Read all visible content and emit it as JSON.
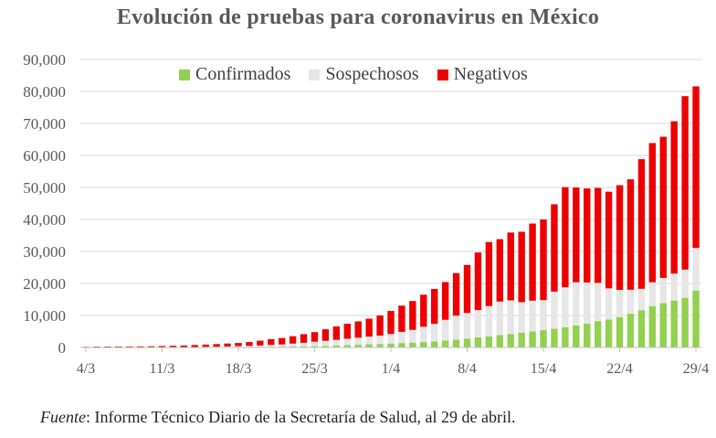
{
  "title": "Evolución de pruebas para coronavirus en México",
  "legend": {
    "items": [
      {
        "label": "Confirmados",
        "color": "#92d050"
      },
      {
        "label": "Sospechosos",
        "color": "#e6e6e6"
      },
      {
        "label": "Negativos",
        "color": "#ee0000"
      }
    ]
  },
  "source": {
    "prefix": "Fuente",
    "sep": ":",
    "text": " Informe Técnico Diario de la Secretaría de Salud, al 29 de abril."
  },
  "chart_data": {
    "type": "bar",
    "stacked": true,
    "ylim": [
      0,
      90000
    ],
    "yticks": [
      "0",
      "10,000",
      "20,000",
      "30,000",
      "40,000",
      "50,000",
      "60,000",
      "70,000",
      "80,000",
      "90,000"
    ],
    "xtick_labels": [
      {
        "index": 0,
        "label": "4/3"
      },
      {
        "index": 7,
        "label": "11/3"
      },
      {
        "index": 14,
        "label": "18/3"
      },
      {
        "index": 21,
        "label": "25/3"
      },
      {
        "index": 28,
        "label": "1/4"
      },
      {
        "index": 35,
        "label": "8/4"
      },
      {
        "index": 42,
        "label": "15/4"
      },
      {
        "index": 49,
        "label": "22/4"
      },
      {
        "index": 56,
        "label": "29/4"
      }
    ],
    "categories": [
      "4/3",
      "5/3",
      "6/3",
      "7/3",
      "8/3",
      "9/3",
      "10/3",
      "11/3",
      "12/3",
      "13/3",
      "14/3",
      "15/3",
      "16/3",
      "17/3",
      "18/3",
      "19/3",
      "20/3",
      "21/3",
      "22/3",
      "23/3",
      "24/3",
      "25/3",
      "26/3",
      "27/3",
      "28/3",
      "29/3",
      "30/3",
      "31/3",
      "1/4",
      "2/4",
      "3/4",
      "4/4",
      "5/4",
      "6/4",
      "7/4",
      "8/4",
      "9/4",
      "10/4",
      "11/4",
      "12/4",
      "13/4",
      "14/4",
      "15/4",
      "16/4",
      "17/4",
      "18/4",
      "19/4",
      "20/4",
      "21/4",
      "22/4",
      "23/4",
      "24/4",
      "25/4",
      "26/4",
      "27/4",
      "28/4",
      "29/4"
    ],
    "series": [
      {
        "name": "Confirmados",
        "color": "#92d050",
        "values": [
          5,
          5,
          6,
          7,
          7,
          7,
          7,
          8,
          12,
          16,
          26,
          41,
          53,
          82,
          93,
          118,
          164,
          203,
          251,
          316,
          367,
          405,
          475,
          585,
          717,
          848,
          993,
          1094,
          1215,
          1378,
          1510,
          1688,
          1890,
          2143,
          2439,
          2785,
          3181,
          3441,
          3844,
          4219,
          4661,
          5014,
          5399,
          5847,
          6297,
          6875,
          7497,
          8261,
          8772,
          9501,
          10544,
          11633,
          12872,
          13842,
          14677,
          15529,
          17799
        ]
      },
      {
        "name": "Sospechosos",
        "color": "#e6e6e6",
        "values": [
          10,
          10,
          15,
          20,
          25,
          30,
          50,
          60,
          80,
          100,
          130,
          160,
          200,
          250,
          310,
          380,
          460,
          600,
          700,
          900,
          1100,
          1400,
          1600,
          1800,
          2000,
          2200,
          2400,
          2600,
          3000,
          3500,
          4000,
          4800,
          5500,
          6500,
          7500,
          8000,
          8500,
          9500,
          10500,
          10500,
          9500,
          9600,
          9400,
          11600,
          12500,
          13500,
          12800,
          11900,
          9700,
          8500,
          7500,
          6700,
          7500,
          7900,
          8400,
          8800,
          13300
        ]
      },
      {
        "name": "Negativos",
        "color": "#ee0000",
        "values": [
          200,
          250,
          280,
          290,
          300,
          310,
          320,
          400,
          450,
          500,
          600,
          700,
          800,
          900,
          1000,
          1200,
          1500,
          1800,
          2000,
          2300,
          2700,
          3000,
          3600,
          4200,
          4700,
          5100,
          5600,
          6300,
          7200,
          8200,
          9000,
          10000,
          10900,
          11800,
          13300,
          15000,
          18000,
          20000,
          19500,
          21200,
          22000,
          24100,
          25200,
          27300,
          31300,
          29600,
          29400,
          29700,
          30200,
          32700,
          34500,
          40500,
          43500,
          44100,
          47600,
          54200,
          50500
        ]
      }
    ]
  }
}
